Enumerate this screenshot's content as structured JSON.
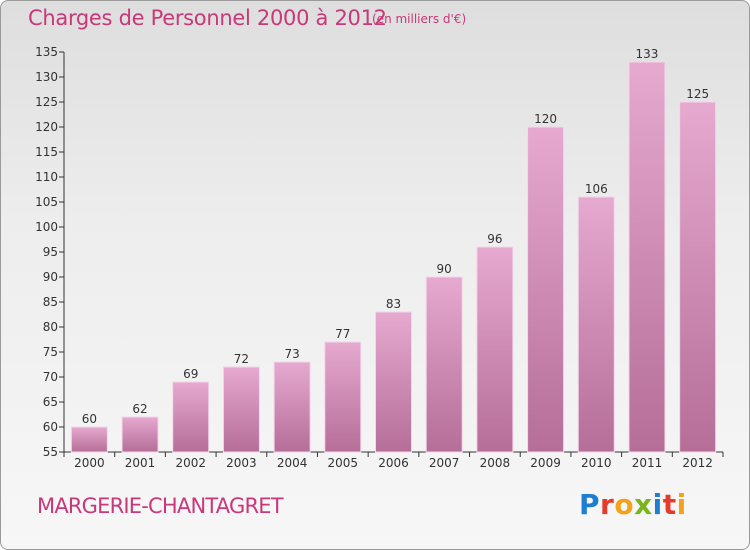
{
  "title": "Charges de Personnel 2000 à 2012",
  "subtitle": "(en milliers d'€)",
  "commune": "MARGERIE-CHANTAGRET",
  "logo": {
    "letters": [
      "P",
      "r",
      "o",
      "x",
      "i",
      "t",
      "i"
    ],
    "colors": [
      "#1e7fd0",
      "#e63a2a",
      "#f2a21b",
      "#7ab51d",
      "#1e7fd0",
      "#e63a2a",
      "#f2a21b"
    ]
  },
  "colors": {
    "bar_top": "#e6a9cf",
    "bar_bottom": "#b56e98",
    "accent": "#c8387a"
  },
  "chart_data": {
    "type": "bar",
    "categories": [
      "2000",
      "2001",
      "2002",
      "2003",
      "2004",
      "2005",
      "2006",
      "2007",
      "2008",
      "2009",
      "2010",
      "2011",
      "2012"
    ],
    "values": [
      60,
      62,
      69,
      72,
      73,
      77,
      83,
      90,
      96,
      120,
      106,
      133,
      125
    ],
    "ylim": [
      55,
      135
    ],
    "yticks": [
      55,
      60,
      65,
      70,
      75,
      80,
      85,
      90,
      95,
      100,
      105,
      110,
      115,
      120,
      125,
      130,
      135
    ],
    "grid": false,
    "data_labels": true
  }
}
